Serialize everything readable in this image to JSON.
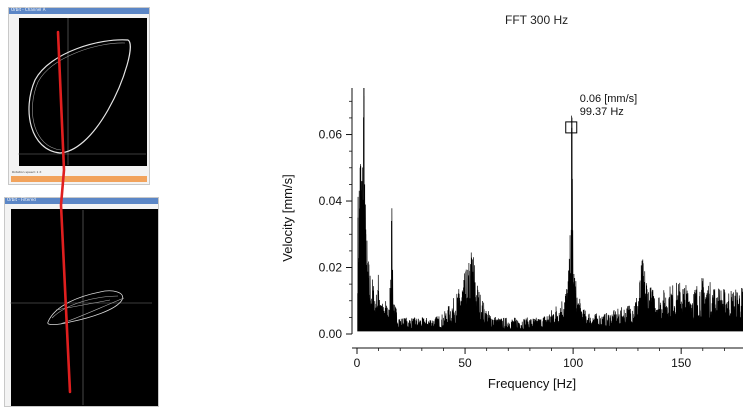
{
  "thumb_top": {
    "title_bar": "Orbit - Channel A",
    "status_text": "Rotation speed: 1 X"
  },
  "thumb_bottom": {
    "title_bar": "Orbit - Filtered"
  },
  "chart_data": {
    "type": "line",
    "title": "FFT 300 Hz",
    "xlabel": "Frequency [Hz]",
    "ylabel": "Velocity [mm/s]",
    "xlim": [
      0,
      180
    ],
    "ylim": [
      0,
      0.074
    ],
    "xticks": [
      0,
      50,
      100,
      150
    ],
    "xtick_labels": [
      "0",
      "50",
      "100",
      "150"
    ],
    "yticks": [
      0.0,
      0.02,
      0.04,
      0.06
    ],
    "ytick_labels": [
      "0.00",
      "0.02",
      "0.04",
      "0.06"
    ],
    "grid": false,
    "series": [
      {
        "x": [
          0.5,
          1.5,
          2.5,
          3.2,
          3.5,
          4.0,
          5.0,
          6.0,
          7.0,
          8.0,
          9.0,
          10.0,
          12.0,
          14.0,
          15.0,
          16.0,
          17.0,
          20.0,
          25.0,
          30.0,
          35.0,
          40.0,
          45.0,
          48.0,
          50.0,
          52.0,
          53.5,
          55.0,
          57.0,
          60.0,
          65.0,
          70.0,
          75.0,
          80.0,
          85.0,
          90.0,
          95.0,
          97.0,
          98.5,
          99.37,
          100.2,
          102.0,
          105.0,
          110.0,
          115.0,
          120.0,
          125.0,
          130.0,
          132.0,
          135.0,
          140.0,
          145.0,
          150.0,
          155.0,
          160.0,
          165.0,
          170.0,
          175.0,
          180.0
        ],
        "y": [
          0.035,
          0.05,
          0.046,
          0.074,
          0.045,
          0.03,
          0.02,
          0.016,
          0.014,
          0.012,
          0.01,
          0.016,
          0.007,
          0.009,
          0.006,
          0.034,
          0.008,
          0.004,
          0.004,
          0.004,
          0.004,
          0.005,
          0.009,
          0.012,
          0.015,
          0.018,
          0.023,
          0.014,
          0.01,
          0.006,
          0.004,
          0.004,
          0.004,
          0.004,
          0.004,
          0.006,
          0.009,
          0.012,
          0.02,
          0.062,
          0.018,
          0.01,
          0.006,
          0.005,
          0.005,
          0.006,
          0.007,
          0.01,
          0.019,
          0.012,
          0.01,
          0.012,
          0.013,
          0.011,
          0.014,
          0.012,
          0.011,
          0.011,
          0.012
        ]
      }
    ],
    "annotations": [
      {
        "x": 99.37,
        "y": 0.062,
        "line1": "0.06 [mm/s]",
        "line2": "99.37 Hz"
      }
    ]
  }
}
